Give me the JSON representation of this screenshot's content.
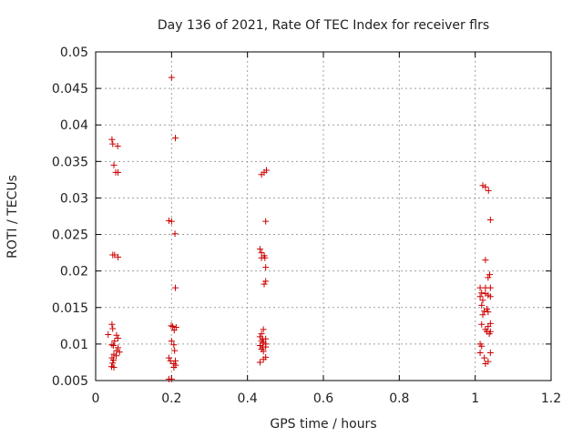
{
  "chart_data": {
    "type": "scatter",
    "title": "Day 136 of 2021, Rate Of TEC Index for receiver flrs",
    "xlabel": "GPS time / hours",
    "ylabel": "ROTI / TECUs",
    "xlim": [
      0,
      1.2
    ],
    "ylim": [
      0.005,
      0.05
    ],
    "xticks": [
      0,
      0.2,
      0.4,
      0.6,
      0.8,
      1,
      1.2
    ],
    "xtick_labels": [
      "0",
      "0.2",
      "0.4",
      "0.6",
      "0.8",
      "1",
      "1.2"
    ],
    "yticks": [
      0.005,
      0.01,
      0.015,
      0.02,
      0.025,
      0.03,
      0.035,
      0.04,
      0.045,
      0.05
    ],
    "ytick_labels": [
      "0.005",
      "0.01",
      "0.015",
      "0.02",
      "0.025",
      "0.03",
      "0.035",
      "0.04",
      "0.045",
      "0.05"
    ],
    "grid": true,
    "marker": "+",
    "color": "#cc0000",
    "series": [
      {
        "name": "flrs",
        "points": [
          [
            0.043,
            0.038
          ],
          [
            0.045,
            0.0374
          ],
          [
            0.058,
            0.0371
          ],
          [
            0.048,
            0.0345
          ],
          [
            0.053,
            0.0335
          ],
          [
            0.059,
            0.0335
          ],
          [
            0.045,
            0.0222
          ],
          [
            0.05,
            0.0222
          ],
          [
            0.059,
            0.0219
          ],
          [
            0.043,
            0.0127
          ],
          [
            0.045,
            0.0121
          ],
          [
            0.033,
            0.0113
          ],
          [
            0.055,
            0.0112
          ],
          [
            0.059,
            0.0108
          ],
          [
            0.05,
            0.0104
          ],
          [
            0.043,
            0.0099
          ],
          [
            0.047,
            0.0098
          ],
          [
            0.059,
            0.0095
          ],
          [
            0.055,
            0.0091
          ],
          [
            0.063,
            0.0089
          ],
          [
            0.048,
            0.0086
          ],
          [
            0.054,
            0.0084
          ],
          [
            0.043,
            0.0081
          ],
          [
            0.047,
            0.0078
          ],
          [
            0.045,
            0.0074
          ],
          [
            0.042,
            0.0069
          ],
          [
            0.048,
            0.0068
          ],
          [
            0.2,
            0.0465
          ],
          [
            0.21,
            0.0382
          ],
          [
            0.193,
            0.0269
          ],
          [
            0.2,
            0.0268
          ],
          [
            0.209,
            0.0251
          ],
          [
            0.21,
            0.0177
          ],
          [
            0.199,
            0.0125
          ],
          [
            0.203,
            0.0124
          ],
          [
            0.212,
            0.0123
          ],
          [
            0.207,
            0.0119
          ],
          [
            0.2,
            0.0104
          ],
          [
            0.206,
            0.0099
          ],
          [
            0.208,
            0.0091
          ],
          [
            0.193,
            0.0081
          ],
          [
            0.197,
            0.0077
          ],
          [
            0.21,
            0.0077
          ],
          [
            0.206,
            0.0073
          ],
          [
            0.211,
            0.0071
          ],
          [
            0.206,
            0.0068
          ],
          [
            0.193,
            0.0052
          ],
          [
            0.2,
            0.0052
          ],
          [
            0.45,
            0.0338
          ],
          [
            0.444,
            0.0335
          ],
          [
            0.437,
            0.0332
          ],
          [
            0.448,
            0.0268
          ],
          [
            0.433,
            0.023
          ],
          [
            0.437,
            0.0225
          ],
          [
            0.444,
            0.0221
          ],
          [
            0.437,
            0.0218
          ],
          [
            0.446,
            0.0218
          ],
          [
            0.448,
            0.0205
          ],
          [
            0.448,
            0.0186
          ],
          [
            0.444,
            0.0182
          ],
          [
            0.442,
            0.012
          ],
          [
            0.437,
            0.0114
          ],
          [
            0.433,
            0.011
          ],
          [
            0.44,
            0.0107
          ],
          [
            0.448,
            0.0107
          ],
          [
            0.437,
            0.0104
          ],
          [
            0.442,
            0.0102
          ],
          [
            0.448,
            0.01
          ],
          [
            0.433,
            0.0098
          ],
          [
            0.44,
            0.0096
          ],
          [
            0.448,
            0.0096
          ],
          [
            0.437,
            0.0093
          ],
          [
            0.442,
            0.009
          ],
          [
            0.448,
            0.0082
          ],
          [
            0.442,
            0.0079
          ],
          [
            0.433,
            0.0075
          ],
          [
            1.02,
            0.0317
          ],
          [
            1.027,
            0.0315
          ],
          [
            1.035,
            0.031
          ],
          [
            1.04,
            0.027
          ],
          [
            1.027,
            0.0215
          ],
          [
            1.038,
            0.0195
          ],
          [
            1.034,
            0.0191
          ],
          [
            1.013,
            0.0177
          ],
          [
            1.027,
            0.0177
          ],
          [
            1.04,
            0.0177
          ],
          [
            1.017,
            0.017
          ],
          [
            1.027,
            0.0169
          ],
          [
            1.013,
            0.0165
          ],
          [
            1.034,
            0.0167
          ],
          [
            1.04,
            0.0165
          ],
          [
            1.02,
            0.016
          ],
          [
            1.017,
            0.0153
          ],
          [
            1.031,
            0.0148
          ],
          [
            1.024,
            0.0145
          ],
          [
            1.034,
            0.0144
          ],
          [
            1.02,
            0.014
          ],
          [
            1.017,
            0.0127
          ],
          [
            1.04,
            0.0128
          ],
          [
            1.034,
            0.0124
          ],
          [
            1.027,
            0.012
          ],
          [
            1.031,
            0.0117
          ],
          [
            1.04,
            0.0117
          ],
          [
            1.037,
            0.0114
          ],
          [
            1.013,
            0.01
          ],
          [
            1.017,
            0.0097
          ],
          [
            1.04,
            0.0088
          ],
          [
            1.013,
            0.0088
          ],
          [
            1.024,
            0.0081
          ],
          [
            1.034,
            0.0076
          ],
          [
            1.027,
            0.0073
          ]
        ]
      }
    ]
  }
}
